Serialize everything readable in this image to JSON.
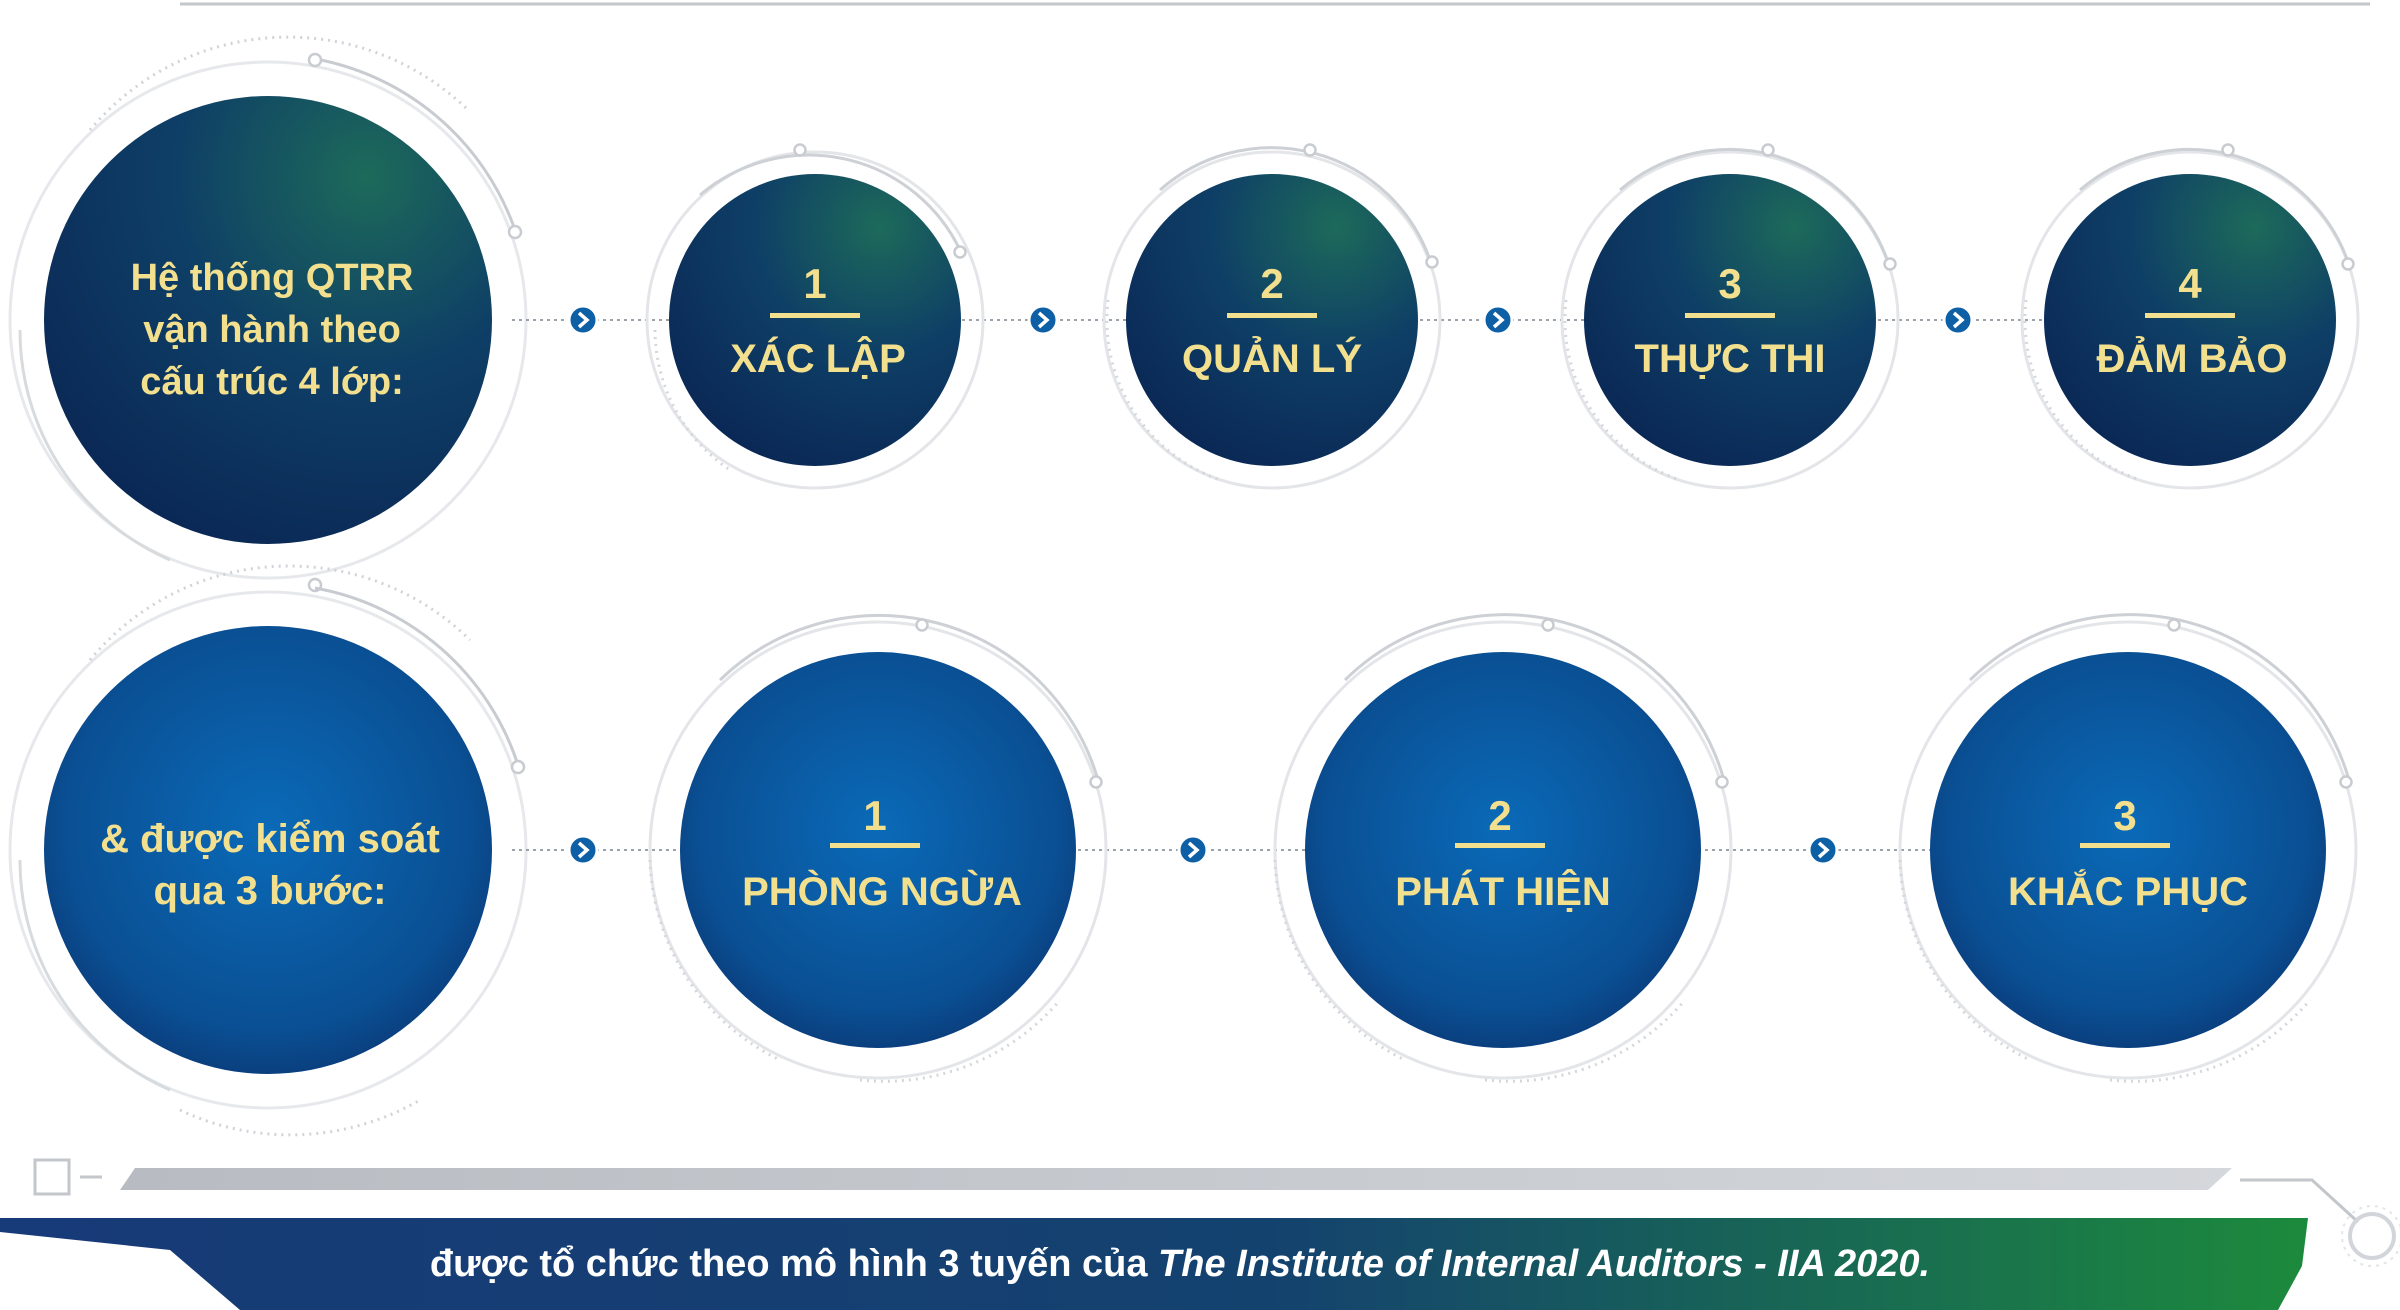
{
  "intro_layers": {
    "line1": "Hệ thống QTRR",
    "line2": "vận hành theo",
    "line3": "cấu trúc 4 lớp:"
  },
  "layers": [
    {
      "number": "1",
      "label": "XÁC LẬP"
    },
    {
      "number": "2",
      "label": "QUẢN LÝ"
    },
    {
      "number": "3",
      "label": "THỰC THI"
    },
    {
      "number": "4",
      "label": "ĐẢM BẢO"
    }
  ],
  "intro_steps": {
    "line1": "& được kiểm soát",
    "line2": "qua 3 bước:"
  },
  "steps": [
    {
      "number": "1",
      "label": "PHÒNG NGỪA"
    },
    {
      "number": "2",
      "label": "PHÁT HIỆN"
    },
    {
      "number": "3",
      "label": "KHẮC PHỤC"
    }
  ],
  "footer": {
    "text": "được tổ chức theo mô hình 3 tuyến của ",
    "italic": "The Institute of Internal Auditors - IIA 2020."
  },
  "colors": {
    "text_gold": "#f3e08e",
    "navy": "#0b2d5f",
    "teal": "#1d6a5a",
    "blue": "#0a6ab8",
    "arrow_badge": "#0d5fa6",
    "footer_navy": "#173a78",
    "footer_green": "#1c8a3c"
  }
}
